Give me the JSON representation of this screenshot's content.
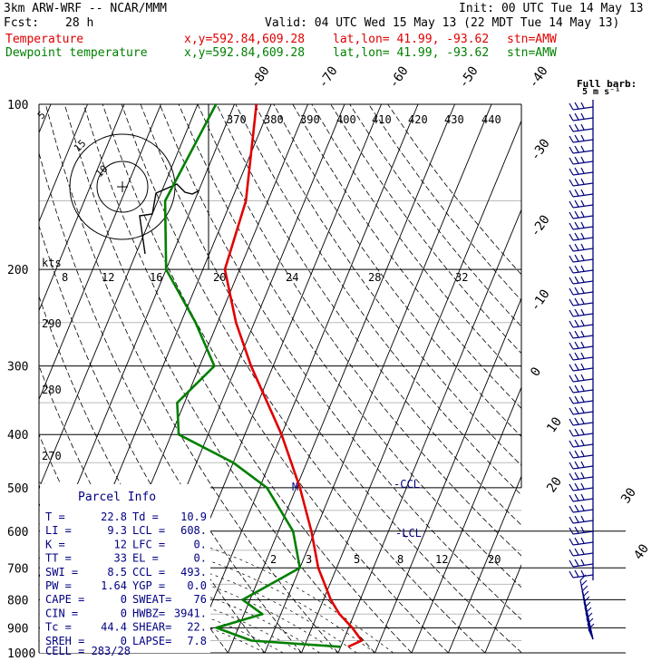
{
  "header": {
    "model": "3km ARW-WRF -- NCAR/MMM",
    "init": "Init: 00 UTC Tue 14 May 13",
    "fcst_label": "Fcst:",
    "fcst_value": "28 h",
    "valid": "Valid: 04 UTC Wed 15 May 13 (22 MDT Tue 14 May 13)",
    "rows": [
      {
        "name": "Temperature",
        "coord": "x,y=592.84,609.28",
        "latlon": "lat,lon= 41.99, -93.62",
        "stn": "stn=AMW",
        "color": "#e00000"
      },
      {
        "name": "Dewpoint temperature",
        "coord": "x,y=592.84,609.28",
        "latlon": "lat,lon= 41.99, -93.62",
        "stn": "stn=AMW",
        "color": "#008000"
      }
    ]
  },
  "chart_data": {
    "type": "line",
    "subtype": "skew-T log-P sounding",
    "pressure_levels": [
      100,
      200,
      300,
      400,
      500,
      600,
      700,
      800,
      900,
      1000
    ],
    "skewed_temp_labels": [
      "-80",
      "-70",
      "-60",
      "-50",
      "-40",
      "-30",
      "-20",
      "-10",
      "0",
      "10",
      "20",
      "30",
      "40"
    ],
    "bottom_temp_labels": [
      "8",
      "12",
      "16",
      "20",
      "24",
      "28",
      "32"
    ],
    "theta_labels": [
      "370",
      "380",
      "390",
      "400",
      "410",
      "420",
      "430",
      "440"
    ],
    "theta_left_labels": [
      "290",
      "280",
      "270"
    ],
    "mixing_ratio_labels": [
      "2",
      "3",
      "5",
      "8",
      "12",
      "20"
    ],
    "series": [
      {
        "name": "Temperature",
        "color": "#e00000",
        "points": [
          [
            100,
            -64
          ],
          [
            150,
            -56
          ],
          [
            200,
            -54
          ],
          [
            250,
            -45
          ],
          [
            300,
            -36
          ],
          [
            400,
            -20
          ],
          [
            500,
            -9
          ],
          [
            600,
            -1
          ],
          [
            700,
            5
          ],
          [
            800,
            12
          ],
          [
            850,
            16
          ],
          [
            900,
            21
          ],
          [
            950,
            25
          ],
          [
            975,
            22
          ]
        ]
      },
      {
        "name": "Dewpoint temperature",
        "color": "#008000",
        "points": [
          [
            100,
            -75
          ],
          [
            150,
            -78
          ],
          [
            200,
            -70
          ],
          [
            250,
            -56
          ],
          [
            300,
            -46
          ],
          [
            350,
            -52
          ],
          [
            400,
            -48
          ],
          [
            450,
            -30
          ],
          [
            500,
            -18
          ],
          [
            600,
            -6
          ],
          [
            700,
            0
          ],
          [
            800,
            -12
          ],
          [
            850,
            -5
          ],
          [
            900,
            -16
          ],
          [
            950,
            -5
          ],
          [
            975,
            20
          ]
        ]
      }
    ],
    "annotations": [
      "-CCL",
      "-LCL",
      "M"
    ],
    "hodograph": {
      "units_label": "kts",
      "ring_labels": [
        "5",
        "10",
        "15"
      ]
    },
    "wind_panel": {
      "title": "Full barb:",
      "subtitle": "5 m s⁻¹"
    },
    "parcel_info": {
      "title": "Parcel Info",
      "rows": [
        [
          "T  =",
          "22.8",
          "Td =",
          "10.9"
        ],
        [
          "LI =",
          "9.3",
          "LCL =",
          "608."
        ],
        [
          "K  =",
          "12",
          "LFC =",
          "0."
        ],
        [
          "TT =",
          "33",
          "EL  =",
          "0."
        ],
        [
          "SWI =",
          "8.5",
          "CCL =",
          "493."
        ],
        [
          "PW =",
          "1.64",
          "YGP =",
          "0.0"
        ],
        [
          "CAPE =",
          "0",
          "SWEAT=",
          "76"
        ],
        [
          "CIN  =",
          "0",
          "HWBZ=",
          "3941."
        ],
        [
          "Tc   =",
          "44.4",
          "SHEAR=",
          "22."
        ],
        [
          "SREH =",
          "0",
          "LAPSE=",
          "7.8"
        ]
      ],
      "cell": "CELL = 283/28"
    }
  }
}
